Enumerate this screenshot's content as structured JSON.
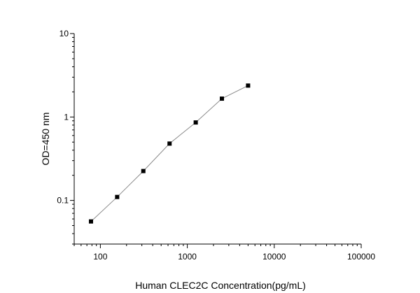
{
  "chart_data": {
    "type": "scatter",
    "xlabel": "Human CLEC2C Concentration(pg/mL)",
    "ylabel": "OD=450 nm",
    "x_scale": "log",
    "y_scale": "log",
    "xlim": [
      50,
      100000
    ],
    "ylim": [
      0.03,
      10
    ],
    "x_tick_labels": [
      "100",
      "1000",
      "10000",
      "100000"
    ],
    "x_tick_values": [
      100,
      1000,
      10000,
      100000
    ],
    "y_tick_labels": [
      "0.1",
      "1",
      "10"
    ],
    "y_tick_values": [
      0.1,
      1,
      10
    ],
    "grid": false,
    "series": [
      {
        "x": [
          78,
          156,
          312,
          625,
          1250,
          2500,
          5000
        ],
        "y": [
          0.056,
          0.11,
          0.225,
          0.48,
          0.86,
          1.66,
          2.38
        ]
      }
    ],
    "colors": {
      "marker": "#000000",
      "line": "#8a8a8a"
    }
  }
}
